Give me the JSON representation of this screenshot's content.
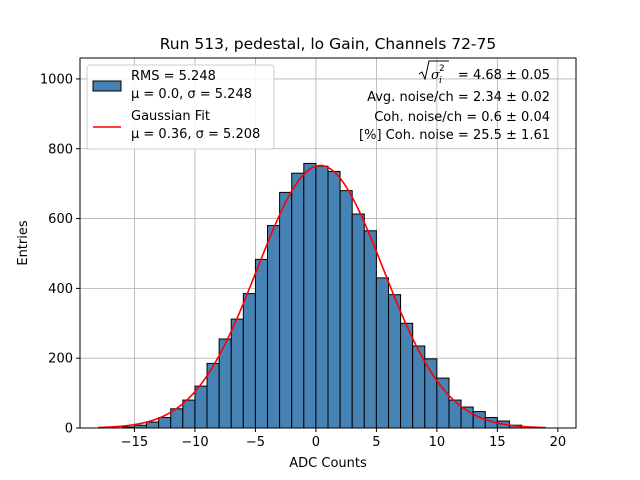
{
  "chart_data": {
    "type": "bar",
    "title": "Run 513, pedestal, lo Gain, Channels 72-75",
    "xlabel": "ADC Counts",
    "ylabel": "Entries",
    "xlim": [
      -19.5,
      21.5
    ],
    "ylim": [
      0,
      1060
    ],
    "xticks": [
      -15,
      -10,
      -5,
      0,
      5,
      10,
      15,
      20
    ],
    "xtick_labels": [
      "−15",
      "−10",
      "−5",
      "0",
      "5",
      "10",
      "15",
      "20"
    ],
    "yticks": [
      0,
      200,
      400,
      600,
      800,
      1000
    ],
    "ytick_labels": [
      "0",
      "200",
      "400",
      "600",
      "800",
      "1000"
    ],
    "grid": true,
    "bin_width": 1,
    "histogram": {
      "bin_starts": [
        -16,
        -15,
        -14,
        -13,
        -12,
        -11,
        -10,
        -9,
        -8,
        -7,
        -6,
        -5,
        -4,
        -3,
        -2,
        -1,
        0,
        1,
        2,
        3,
        4,
        5,
        6,
        7,
        8,
        9,
        10,
        11,
        12,
        13,
        14,
        15,
        16
      ],
      "counts": [
        3,
        8,
        17,
        30,
        55,
        80,
        120,
        185,
        255,
        312,
        385,
        483,
        580,
        675,
        730,
        758,
        750,
        735,
        680,
        613,
        565,
        430,
        382,
        300,
        235,
        198,
        143,
        80,
        60,
        47,
        30,
        20,
        8
      ],
      "color": "#4682b4",
      "edge_color": "#000000"
    },
    "fit": {
      "mu": 0.36,
      "sigma": 5.208,
      "amplitude": 752,
      "x_range": [
        -18,
        19
      ],
      "color": "#ff0000"
    },
    "legend": {
      "position": "top-left",
      "entries": [
        {
          "label_line1": "RMS = 5.248",
          "label_line2": "μ = 0.0, σ = 5.248",
          "kind": "patch"
        },
        {
          "label_line1": "Gaussian Fit",
          "label_line2": "μ = 0.36, σ = 5.208",
          "kind": "line"
        }
      ]
    },
    "annotations": {
      "sigma_i2_value": "= 4.68 ± 0.05",
      "avg_noise": "Avg. noise/ch = 2.34 ± 0.02",
      "coh_noise": "Coh. noise/ch = 0.6 ± 0.04",
      "coh_percent": "[%] Coh. noise = 25.5 ± 1.61"
    }
  }
}
